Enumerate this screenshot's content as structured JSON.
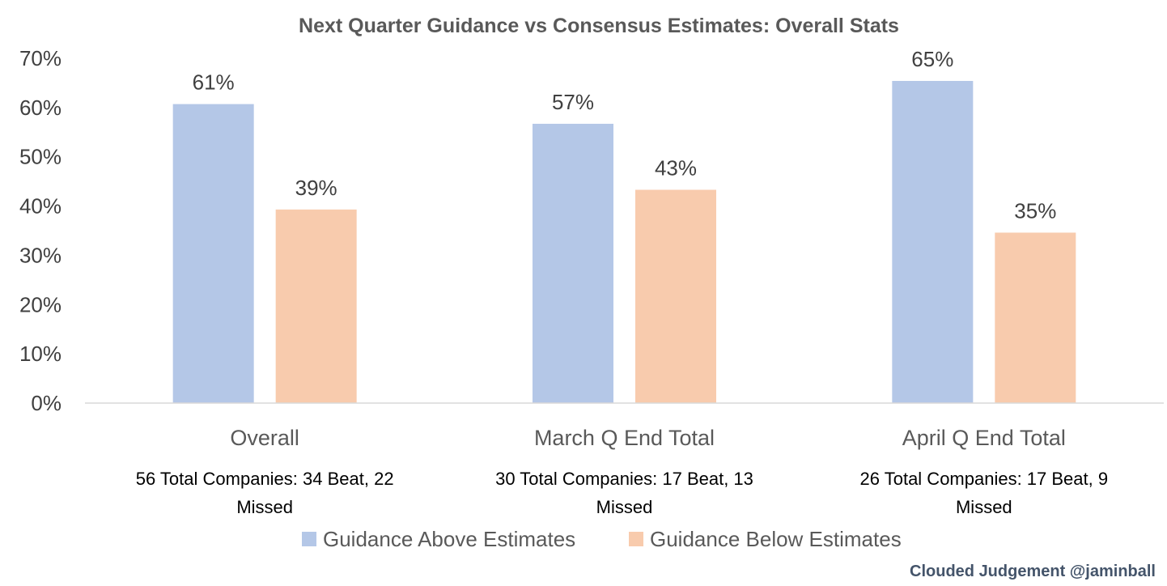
{
  "chart_data": {
    "type": "bar",
    "title": "Next Quarter Guidance vs Consensus Estimates: Overall Stats",
    "categories": [
      "Overall",
      "March Q End Total",
      "April Q End Total"
    ],
    "category_notes": [
      [
        "56 Total Companies: 34 Beat, 22",
        "Missed"
      ],
      [
        "30 Total Companies: 17 Beat, 13",
        "Missed"
      ],
      [
        "26 Total Companies: 17 Beat, 9",
        "Missed"
      ]
    ],
    "series": [
      {
        "name": "Guidance Above Estimates",
        "color": "#b4c7e7",
        "values": [
          60.7,
          56.7,
          65.4
        ],
        "labels": [
          "61%",
          "57%",
          "65%"
        ]
      },
      {
        "name": "Guidance Below Estimates",
        "color": "#f8cbad",
        "values": [
          39.3,
          43.3,
          34.6
        ],
        "labels": [
          "39%",
          "43%",
          "35%"
        ]
      }
    ],
    "ylim": [
      0,
      70
    ],
    "yticks": [
      "0%",
      "10%",
      "20%",
      "30%",
      "40%",
      "50%",
      "60%",
      "70%"
    ],
    "grid": false,
    "legend_position": "bottom",
    "xlabel": "",
    "ylabel": ""
  },
  "credit": "Clouded Judgement @jaminball"
}
